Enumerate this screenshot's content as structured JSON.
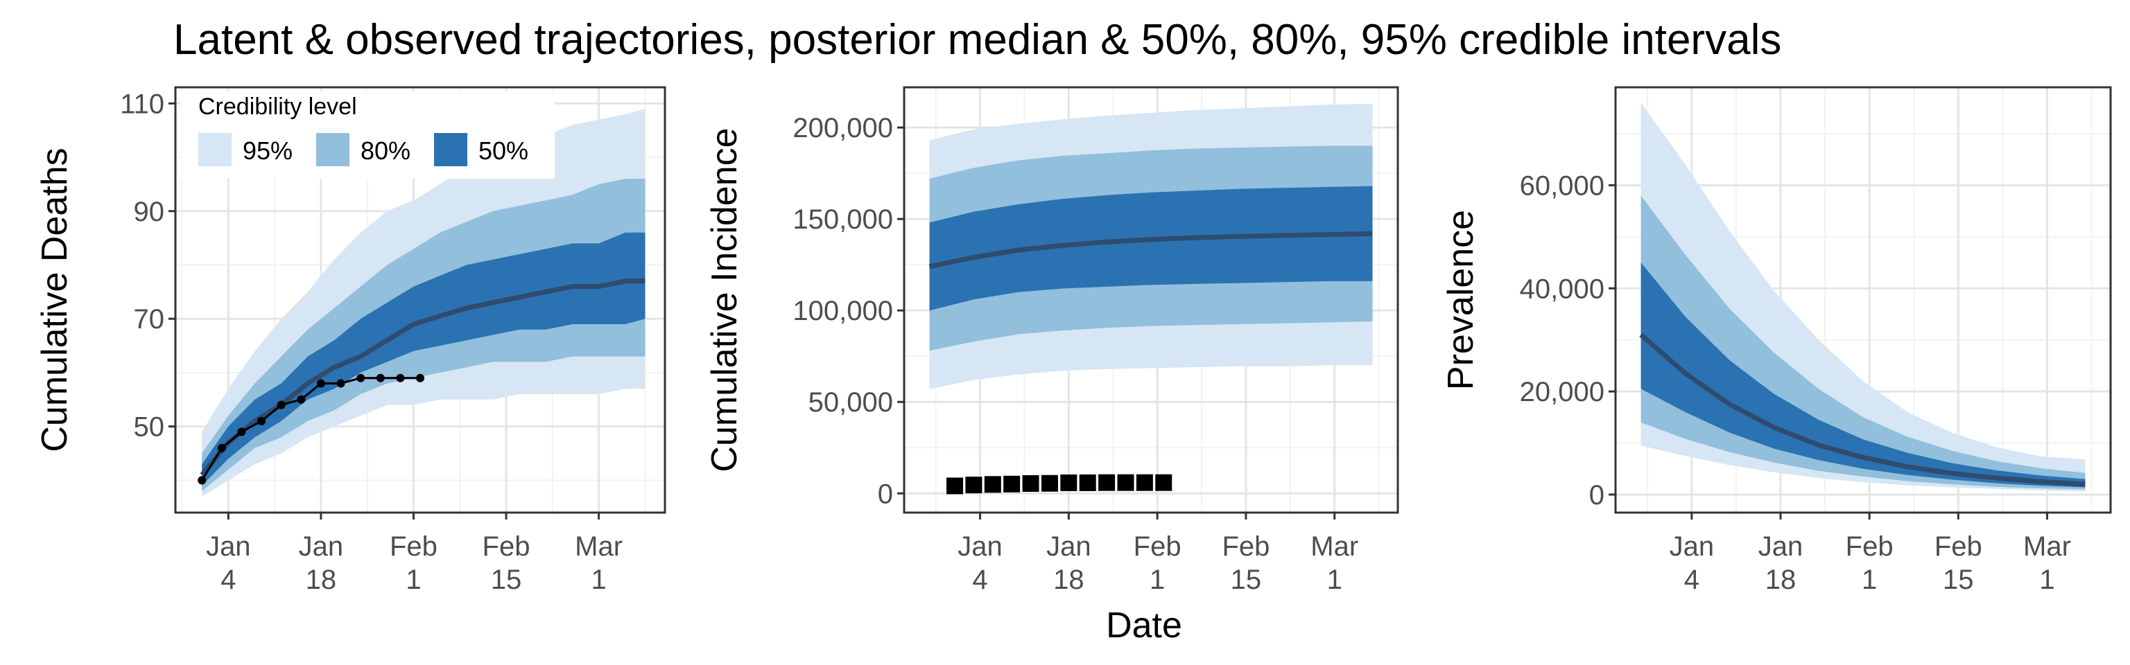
{
  "title": "Latent & observed trajectories, posterior median & 50%, 80%, 95% credible intervals",
  "x_axis_title": "Date",
  "x_ticks": [
    {
      "line1": "Jan",
      "line2": "4",
      "date": "2021-01-04"
    },
    {
      "line1": "Jan",
      "line2": "18",
      "date": "2021-01-18"
    },
    {
      "line1": "Feb",
      "line2": "1",
      "date": "2021-02-01"
    },
    {
      "line1": "Feb",
      "line2": "15",
      "date": "2021-02-15"
    },
    {
      "line1": "Mar",
      "line2": "1",
      "date": "2021-03-01"
    }
  ],
  "legend": {
    "title": "Credibility level",
    "items": [
      {
        "label": "95%",
        "color": "#d6e6f4"
      },
      {
        "label": "80%",
        "color": "#92bfdb"
      },
      {
        "label": "50%",
        "color": "#2a72b2"
      }
    ]
  },
  "colors": {
    "band_95": "#d6e6f4",
    "band_80": "#92bfdb",
    "band_50": "#2a72b2",
    "median": "#2f4b6e",
    "observed": "#000000",
    "grid_major": "#e5e5e5",
    "grid_minor": "#f2f2f2",
    "panel_border": "#333333"
  },
  "chart_data": [
    {
      "type": "area",
      "ylabel": "Cumulative Deaths",
      "xlabel": "",
      "y_ticks": [
        "50",
        "70",
        "90",
        "110"
      ],
      "y_tick_values": [
        50,
        70,
        90,
        110
      ],
      "ylim": [
        34,
        113
      ],
      "xlim": [
        "2020-12-27",
        "2021-03-11"
      ],
      "grid": true,
      "legend_position": "top-left",
      "series": [
        {
          "dates": [
            "2020-12-31",
            "2021-01-04",
            "2021-01-08",
            "2021-01-12",
            "2021-01-16",
            "2021-01-20",
            "2021-01-24",
            "2021-01-28",
            "2021-02-01",
            "2021-02-05",
            "2021-02-09",
            "2021-02-13",
            "2021-02-17",
            "2021-02-21",
            "2021-02-25",
            "2021-03-01",
            "2021-03-05",
            "2021-03-08"
          ],
          "median": [
            41,
            47,
            51,
            54,
            58,
            61,
            63,
            66,
            69,
            70.5,
            72,
            73,
            74,
            75,
            76,
            76,
            77,
            77
          ],
          "lo50": [
            39,
            44,
            48,
            51,
            55,
            57,
            60,
            62,
            64,
            65,
            66,
            67,
            68,
            68,
            69,
            69,
            69,
            70
          ],
          "hi50": [
            43,
            50,
            55,
            58,
            63,
            66,
            70,
            73,
            76,
            78,
            80,
            81,
            82,
            83,
            84,
            84,
            86,
            86
          ],
          "lo80": [
            38,
            42,
            46,
            48,
            51,
            53,
            56,
            58,
            59,
            60,
            61,
            62,
            62,
            62,
            63,
            63,
            63,
            63
          ],
          "hi80": [
            45,
            52,
            58,
            63,
            68,
            72,
            76,
            80,
            83,
            86,
            88,
            90,
            91,
            92,
            93,
            95,
            96,
            96
          ],
          "lo95": [
            37,
            40,
            43,
            45,
            48,
            50,
            52,
            54,
            54,
            55,
            55,
            55,
            56,
            56,
            56,
            56,
            57,
            57
          ],
          "hi95": [
            49,
            57,
            64,
            70,
            75,
            81,
            86,
            90,
            92,
            95,
            98,
            100,
            102,
            104,
            106,
            107,
            108,
            109
          ]
        }
      ],
      "observed": {
        "dates": [
          "2020-12-31",
          "2021-01-03",
          "2021-01-06",
          "2021-01-09",
          "2021-01-12",
          "2021-01-15",
          "2021-01-18",
          "2021-01-21",
          "2021-01-24",
          "2021-01-27",
          "2021-01-30",
          "2021-02-02"
        ],
        "values": [
          40,
          46,
          49,
          51,
          54,
          55,
          58,
          58,
          59,
          59,
          59,
          59
        ],
        "style": "line-points"
      }
    },
    {
      "type": "area",
      "ylabel": "Cumulative Incidence",
      "xlabel": "Date",
      "y_ticks": [
        "0",
        "50,000",
        "100,000",
        "150,000",
        "200,000"
      ],
      "y_tick_values": [
        0,
        50000,
        100000,
        150000,
        200000
      ],
      "ylim": [
        -10500,
        222000
      ],
      "xlim": [
        "2020-12-23",
        "2021-03-11"
      ],
      "grid": true,
      "series": [
        {
          "dates": [
            "2020-12-27",
            "2021-01-03",
            "2021-01-10",
            "2021-01-17",
            "2021-01-24",
            "2021-01-31",
            "2021-02-07",
            "2021-02-14",
            "2021-02-21",
            "2021-02-28",
            "2021-03-07"
          ],
          "median": [
            124000,
            129000,
            133000,
            135500,
            137500,
            138800,
            139800,
            140500,
            141000,
            141500,
            142000
          ],
          "lo50": [
            100000,
            106000,
            110000,
            112000,
            113000,
            114000,
            114500,
            115000,
            115500,
            116000,
            116000
          ],
          "hi50": [
            148000,
            154000,
            158000,
            161000,
            163000,
            164500,
            165500,
            166500,
            167000,
            167500,
            168000
          ],
          "lo80": [
            78000,
            83000,
            87000,
            89000,
            90500,
            91500,
            92000,
            92500,
            93000,
            93500,
            94000
          ],
          "hi80": [
            172000,
            178000,
            182000,
            184500,
            186000,
            187500,
            188500,
            189000,
            189500,
            190000,
            190000
          ],
          "lo95": [
            57000,
            62000,
            65000,
            67000,
            68000,
            68500,
            69000,
            69500,
            69500,
            70000,
            70000
          ],
          "hi95": [
            193000,
            199000,
            202000,
            204500,
            206500,
            208000,
            209500,
            210500,
            211500,
            212500,
            213000
          ]
        }
      ],
      "observed": {
        "dates": [
          "2020-12-31",
          "2021-01-03",
          "2021-01-06",
          "2021-01-09",
          "2021-01-12",
          "2021-01-15",
          "2021-01-18",
          "2021-01-21",
          "2021-01-24",
          "2021-01-27",
          "2021-01-30",
          "2021-02-02"
        ],
        "values": [
          4100,
          4600,
          4900,
          5100,
          5400,
          5500,
          5800,
          5800,
          5900,
          5900,
          5900,
          5900
        ],
        "style": "squares"
      }
    },
    {
      "type": "area",
      "ylabel": "Prevalence",
      "xlabel": "",
      "y_ticks": [
        "0",
        "20,000",
        "40,000",
        "60,000"
      ],
      "y_tick_values": [
        0,
        20000,
        40000,
        60000
      ],
      "ylim": [
        -3500,
        79000
      ],
      "xlim": [
        "2020-12-23",
        "2021-03-11"
      ],
      "grid": true,
      "series": [
        {
          "dates": [
            "2020-12-27",
            "2021-01-03",
            "2021-01-10",
            "2021-01-17",
            "2021-01-24",
            "2021-01-31",
            "2021-02-07",
            "2021-02-14",
            "2021-02-21",
            "2021-02-28",
            "2021-03-07"
          ],
          "median": [
            31000,
            23500,
            17500,
            13000,
            9600,
            7200,
            5400,
            4100,
            3200,
            2500,
            2000
          ],
          "lo50": [
            20500,
            16000,
            12000,
            8900,
            6700,
            5000,
            3800,
            2900,
            2200,
            1700,
            1400
          ],
          "hi50": [
            45000,
            34500,
            26000,
            19500,
            14500,
            10700,
            8100,
            6100,
            4700,
            3700,
            3000
          ],
          "lo80": [
            14000,
            10800,
            8200,
            6200,
            4600,
            3500,
            2600,
            2000,
            1500,
            1200,
            1000
          ],
          "hi80": [
            58000,
            46500,
            36000,
            27500,
            20500,
            15000,
            11200,
            8500,
            6500,
            5100,
            4200
          ],
          "lo95": [
            9500,
            7500,
            5700,
            4300,
            3200,
            2400,
            1800,
            1400,
            1100,
            800,
            600
          ],
          "hi95": [
            76000,
            64000,
            51000,
            39500,
            30000,
            22000,
            16000,
            12000,
            9200,
            7400,
            6800
          ]
        }
      ]
    }
  ]
}
